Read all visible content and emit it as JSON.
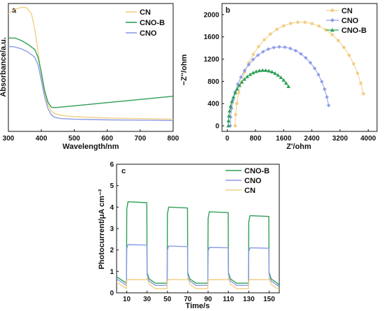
{
  "colors": {
    "CN": "#f2cf84",
    "CNO": "#8c9ce8",
    "CNO-B": "#2f9f58"
  },
  "chart_data": [
    {
      "panel": "a",
      "type": "line",
      "xlabel": "Wavelength/nm",
      "ylabel": "Absorbance/a.u.",
      "xlim": [
        300,
        800
      ],
      "xticks": [
        300,
        400,
        500,
        600,
        700,
        800
      ],
      "yticks_shown": false,
      "legend": "top-right",
      "series": [
        {
          "name": "CN",
          "x": [
            300,
            320,
            340,
            355,
            370,
            380,
            390,
            400,
            410,
            420,
            430,
            440,
            460,
            500,
            600,
            700,
            800
          ],
          "y": [
            0.92,
            0.955,
            0.97,
            0.968,
            0.92,
            0.8,
            0.62,
            0.44,
            0.3,
            0.21,
            0.16,
            0.14,
            0.125,
            0.115,
            0.105,
            0.1,
            0.095
          ]
        },
        {
          "name": "CNO-B",
          "x": [
            300,
            320,
            340,
            360,
            380,
            390,
            400,
            410,
            420,
            430,
            440,
            460,
            500,
            600,
            700,
            800
          ],
          "y": [
            0.73,
            0.73,
            0.71,
            0.68,
            0.64,
            0.58,
            0.46,
            0.32,
            0.23,
            0.19,
            0.185,
            0.19,
            0.2,
            0.225,
            0.25,
            0.275
          ]
        },
        {
          "name": "CNO",
          "x": [
            300,
            320,
            340,
            360,
            380,
            390,
            400,
            410,
            420,
            430,
            440,
            460,
            500,
            600,
            700,
            800
          ],
          "y": [
            0.665,
            0.66,
            0.645,
            0.62,
            0.58,
            0.52,
            0.4,
            0.27,
            0.18,
            0.13,
            0.11,
            0.1,
            0.095,
            0.09,
            0.088,
            0.085
          ]
        }
      ]
    },
    {
      "panel": "b",
      "type": "scatter",
      "xlabel": "Z'/ohm",
      "ylabel": "−Z''/ohm",
      "xlim": [
        -150,
        4250
      ],
      "ylim": [
        -100,
        2200
      ],
      "xticks": [
        0,
        800,
        1600,
        2400,
        3200,
        4000
      ],
      "yticks": [
        0,
        400,
        800,
        1200,
        1600,
        2000
      ],
      "legend": "top-right",
      "series": [
        {
          "name": "CN",
          "marker": "circle",
          "center": 2090,
          "radius": 1865,
          "theta_end_deg": 162,
          "x": [],
          "y": []
        },
        {
          "name": "CNO",
          "marker": "diamond",
          "center": 1505,
          "radius": 1420,
          "theta_end_deg": 165,
          "x": [],
          "y": []
        },
        {
          "name": "CNO-B",
          "marker": "triangle",
          "center": 1030,
          "radius": 1000,
          "theta_end_deg": 135,
          "x": [],
          "y": []
        }
      ]
    },
    {
      "panel": "c",
      "type": "line",
      "xlabel": "Time/s",
      "ylabel": "Photocurrent/μA cm⁻²",
      "xlim": [
        0,
        160
      ],
      "ylim": [
        0,
        6
      ],
      "xticks": [
        10,
        30,
        50,
        70,
        90,
        110,
        130,
        150
      ],
      "yticks": [
        0,
        1,
        2,
        3,
        4,
        5,
        6
      ],
      "legend": "top-right",
      "on_intervals": [
        [
          10,
          30
        ],
        [
          50,
          70
        ],
        [
          90,
          110
        ],
        [
          130,
          150
        ]
      ],
      "series": [
        {
          "name": "CNO-B",
          "on_levels": [
            4.25,
            4.0,
            3.78,
            3.6
          ],
          "off_level": 0.45
        },
        {
          "name": "CNO",
          "on_levels": [
            2.25,
            2.18,
            2.12,
            2.1
          ],
          "off_level": 0.35
        },
        {
          "name": "CN",
          "on_levels": [
            0.62,
            0.62,
            0.62,
            0.62
          ],
          "off_level": 0.2
        }
      ]
    }
  ]
}
